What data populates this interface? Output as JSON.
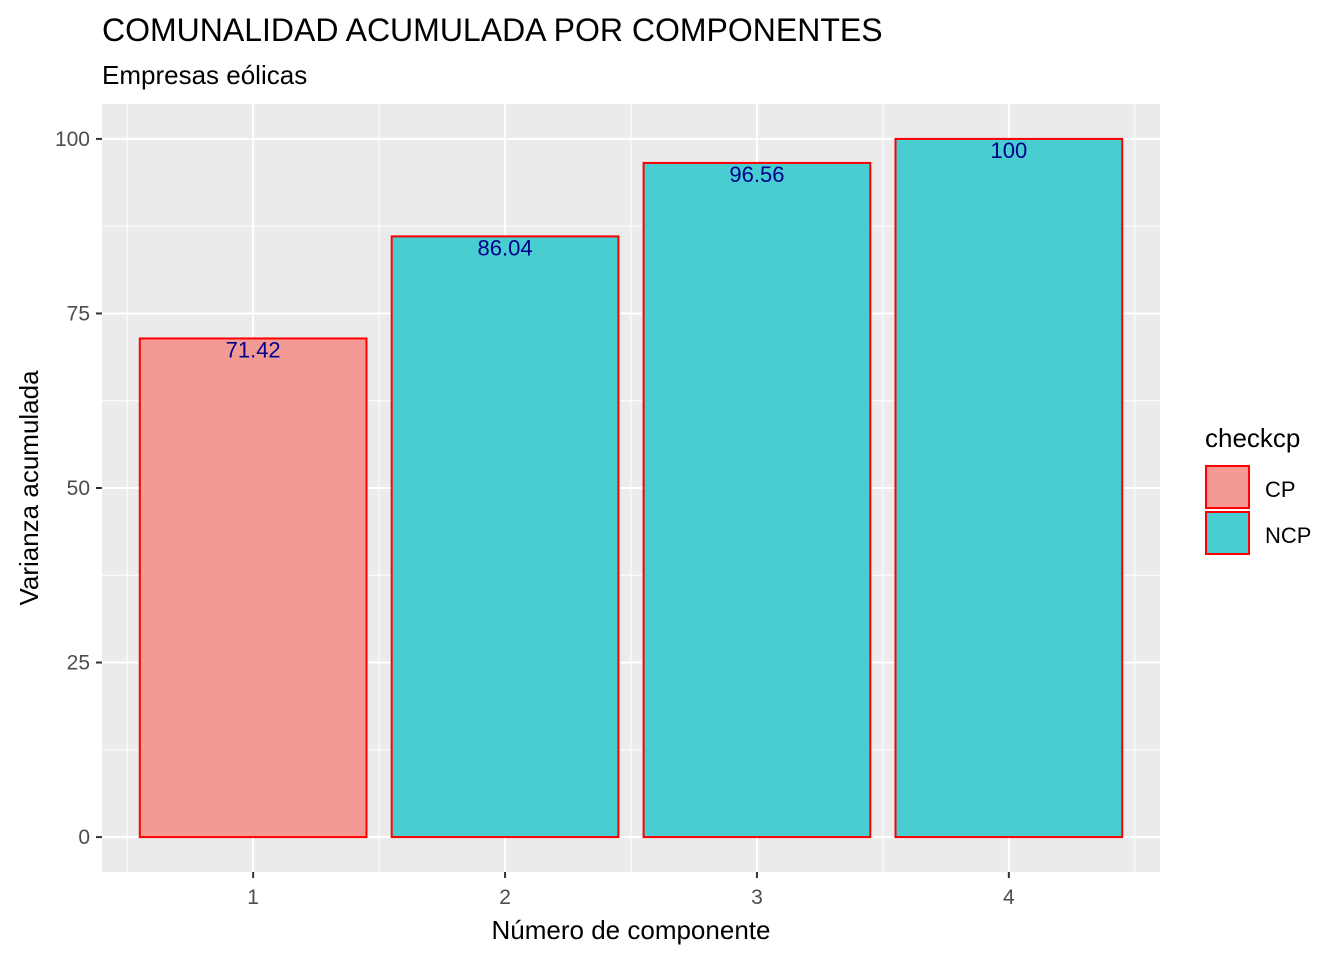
{
  "chart_data": {
    "type": "bar",
    "title": "COMUNALIDAD ACUMULADA POR COMPONENTES",
    "subtitle": "Empresas eólicas",
    "xlabel": "Número de componente",
    "ylabel": "Varianza acumulada",
    "categories": [
      "1",
      "2",
      "3",
      "4"
    ],
    "values": [
      71.42,
      86.04,
      96.56,
      100
    ],
    "data_labels": [
      "71.42",
      "86.04",
      "96.56",
      "100"
    ],
    "groups": [
      "CP",
      "NCP",
      "NCP",
      "NCP"
    ],
    "ylim": [
      -5,
      105
    ],
    "yticks": [
      0,
      25,
      50,
      75,
      100
    ],
    "grid": true,
    "legend": {
      "title": "checkcp",
      "placement": "right",
      "entries": [
        {
          "label": "CP",
          "color": "#F39A94"
        },
        {
          "label": "NCP",
          "color": "#48CDD0"
        }
      ]
    },
    "bar_border_color": "#FF0000",
    "label_color": "#00008B",
    "panel_color": "#EBEBEB"
  }
}
